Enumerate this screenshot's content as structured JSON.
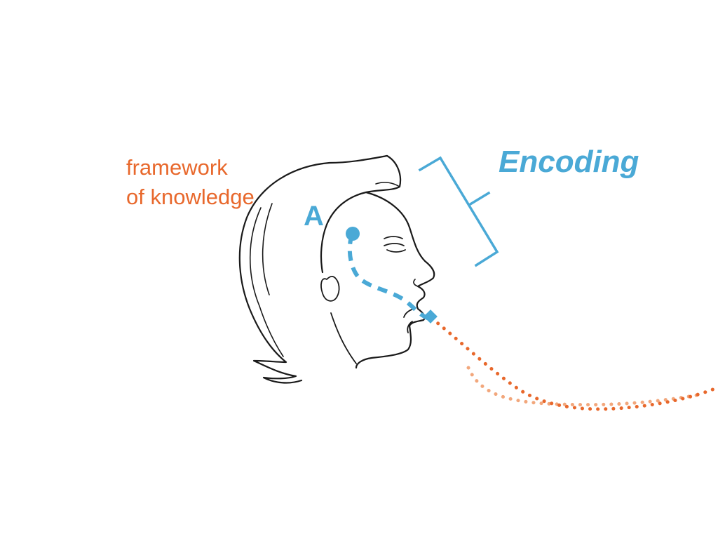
{
  "labels": {
    "framework_line1": "framework",
    "framework_line2": "of knowledge",
    "encoding": "Encoding",
    "person": "A"
  },
  "colors": {
    "orange": "#e8682c",
    "orange_light": "#f2a77c",
    "blue": "#4aa9d6",
    "ink": "#1a1a1a"
  }
}
